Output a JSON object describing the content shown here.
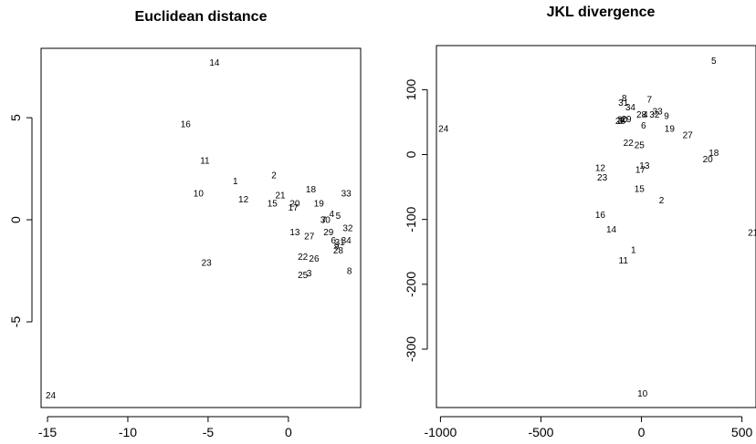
{
  "chart_data": [
    {
      "type": "scatter",
      "title": "Euclidean distance",
      "xlabel": "",
      "ylabel": "",
      "xlim": [
        -15.4,
        4.5
      ],
      "ylim": [
        -9.2,
        8.4
      ],
      "x_ticks": [
        -15,
        -10,
        -5,
        0
      ],
      "y_ticks": [
        -5,
        0,
        5
      ],
      "x_tick_labels": [
        "-15",
        "-10",
        "-5",
        "0"
      ],
      "y_tick_labels": [
        "-5",
        "0",
        "5"
      ],
      "marker": "text-label",
      "points": [
        {
          "label": "1",
          "x": -3.3,
          "y": 1.9
        },
        {
          "label": "2",
          "x": -0.9,
          "y": 2.2
        },
        {
          "label": "3",
          "x": 1.3,
          "y": -2.6
        },
        {
          "label": "4",
          "x": 2.7,
          "y": 0.3
        },
        {
          "label": "5",
          "x": 3.1,
          "y": 0.2
        },
        {
          "label": "6",
          "x": 2.8,
          "y": -1.0
        },
        {
          "label": "7",
          "x": 2.2,
          "y": 0.0
        },
        {
          "label": "8",
          "x": 3.8,
          "y": -2.5
        },
        {
          "label": "9",
          "x": 3.0,
          "y": -1.3
        },
        {
          "label": "10",
          "x": -5.6,
          "y": 1.3
        },
        {
          "label": "11",
          "x": -5.2,
          "y": 2.9
        },
        {
          "label": "12",
          "x": -2.8,
          "y": 1.0
        },
        {
          "label": "13",
          "x": 0.4,
          "y": -0.6
        },
        {
          "label": "14",
          "x": -4.6,
          "y": 7.7
        },
        {
          "label": "15",
          "x": -1.0,
          "y": 0.8
        },
        {
          "label": "16",
          "x": -6.4,
          "y": 4.7
        },
        {
          "label": "17",
          "x": 0.3,
          "y": 0.6
        },
        {
          "label": "18",
          "x": 1.4,
          "y": 1.5
        },
        {
          "label": "19",
          "x": 1.9,
          "y": 0.8
        },
        {
          "label": "20",
          "x": 0.4,
          "y": 0.8
        },
        {
          "label": "21",
          "x": -0.5,
          "y": 1.2
        },
        {
          "label": "22",
          "x": 0.9,
          "y": -1.8
        },
        {
          "label": "23",
          "x": -5.1,
          "y": -2.1
        },
        {
          "label": "24",
          "x": -14.8,
          "y": -8.6
        },
        {
          "label": "25",
          "x": 0.9,
          "y": -2.7
        },
        {
          "label": "26",
          "x": 1.6,
          "y": -1.9
        },
        {
          "label": "27",
          "x": 1.3,
          "y": -0.8
        },
        {
          "label": "28",
          "x": 3.1,
          "y": -1.5
        },
        {
          "label": "29",
          "x": 2.5,
          "y": -0.6
        },
        {
          "label": "30",
          "x": 2.3,
          "y": 0.0
        },
        {
          "label": "31",
          "x": 3.2,
          "y": -1.1
        },
        {
          "label": "32",
          "x": 3.7,
          "y": -0.4
        },
        {
          "label": "33",
          "x": 3.6,
          "y": 1.3
        },
        {
          "label": "34",
          "x": 3.6,
          "y": -1.0
        }
      ]
    },
    {
      "type": "scatter",
      "title": "JKL divergence",
      "xlabel": "",
      "ylabel": "",
      "xlim": [
        -1020,
        570
      ],
      "ylim": [
        -390,
        168
      ],
      "x_ticks": [
        -1000,
        -500,
        0,
        500
      ],
      "y_ticks": [
        -300,
        -200,
        -100,
        0,
        100
      ],
      "x_tick_labels": [
        "-1000",
        "-500",
        "0",
        "500"
      ],
      "y_tick_labels": [
        "-300",
        "-200",
        "-100",
        "0",
        "100"
      ],
      "marker": "text-label",
      "points": [
        {
          "label": "1",
          "x": -40,
          "y": -147
        },
        {
          "label": "2",
          "x": 100,
          "y": -70
        },
        {
          "label": "3",
          "x": -105,
          "y": 52
        },
        {
          "label": "4",
          "x": 20,
          "y": 62
        },
        {
          "label": "5",
          "x": 360,
          "y": 145
        },
        {
          "label": "6",
          "x": 10,
          "y": 45
        },
        {
          "label": "7",
          "x": 40,
          "y": 85
        },
        {
          "label": "8",
          "x": -85,
          "y": 87
        },
        {
          "label": "9",
          "x": 125,
          "y": 60
        },
        {
          "label": "10",
          "x": 5,
          "y": -368
        },
        {
          "label": "11",
          "x": -90,
          "y": -163
        },
        {
          "label": "12",
          "x": -205,
          "y": -20
        },
        {
          "label": "13",
          "x": 15,
          "y": -17
        },
        {
          "label": "14",
          "x": -150,
          "y": -115
        },
        {
          "label": "15",
          "x": -10,
          "y": -53
        },
        {
          "label": "16",
          "x": -205,
          "y": -93
        },
        {
          "label": "17",
          "x": -5,
          "y": -23
        },
        {
          "label": "18",
          "x": 360,
          "y": 3
        },
        {
          "label": "19",
          "x": 140,
          "y": 40
        },
        {
          "label": "20",
          "x": 330,
          "y": -7
        },
        {
          "label": "21",
          "x": 555,
          "y": -120
        },
        {
          "label": "22",
          "x": -65,
          "y": 18
        },
        {
          "label": "23",
          "x": -195,
          "y": -35
        },
        {
          "label": "24",
          "x": -985,
          "y": 40
        },
        {
          "label": "25",
          "x": -10,
          "y": 15
        },
        {
          "label": "26",
          "x": -105,
          "y": 52
        },
        {
          "label": "27",
          "x": 230,
          "y": 30
        },
        {
          "label": "28",
          "x": 0,
          "y": 62
        },
        {
          "label": "29",
          "x": -75,
          "y": 55
        },
        {
          "label": "30",
          "x": -95,
          "y": 54
        },
        {
          "label": "31",
          "x": -90,
          "y": 80
        },
        {
          "label": "32",
          "x": 65,
          "y": 62
        },
        {
          "label": "33",
          "x": 80,
          "y": 67
        },
        {
          "label": "34",
          "x": -55,
          "y": 73
        }
      ]
    }
  ]
}
